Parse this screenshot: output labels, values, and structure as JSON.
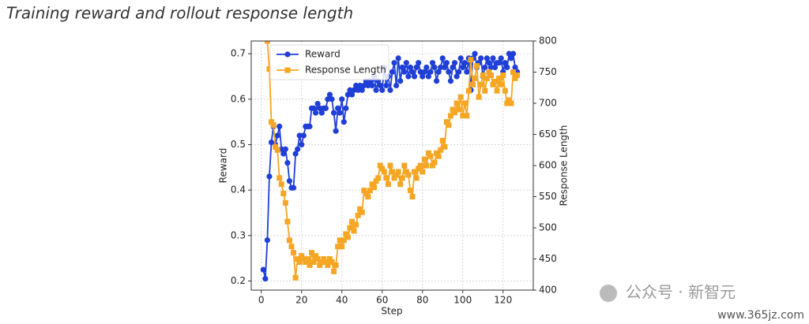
{
  "chart_data": {
    "type": "line",
    "title": "Training reward and rollout response length",
    "x_label": "Step",
    "y_label": "Reward",
    "y2_label": "Response Length",
    "x": [
      1,
      2,
      3,
      4,
      5,
      6,
      7,
      8,
      9,
      10,
      11,
      12,
      13,
      14,
      15,
      16,
      17,
      18,
      19,
      20,
      21,
      22,
      23,
      24,
      25,
      26,
      27,
      28,
      29,
      30,
      31,
      32,
      33,
      34,
      35,
      36,
      37,
      38,
      39,
      40,
      41,
      42,
      43,
      44,
      45,
      46,
      47,
      48,
      49,
      50,
      51,
      52,
      53,
      54,
      55,
      56,
      57,
      58,
      59,
      60,
      61,
      62,
      63,
      64,
      65,
      66,
      67,
      68,
      69,
      70,
      71,
      72,
      73,
      74,
      75,
      76,
      77,
      78,
      79,
      80,
      81,
      82,
      83,
      84,
      85,
      86,
      87,
      88,
      89,
      90,
      91,
      92,
      93,
      94,
      95,
      96,
      97,
      98,
      99,
      100,
      101,
      102,
      103,
      104,
      105,
      106,
      107,
      108,
      109,
      110,
      111,
      112,
      113,
      114,
      115,
      116,
      117,
      118,
      119,
      120,
      121,
      122,
      123,
      124,
      125,
      126,
      127
    ],
    "series": [
      {
        "name": "Reward",
        "color": "#1f3fd6",
        "marker": "circle",
        "values": [
          0.225,
          0.205,
          0.29,
          0.43,
          0.505,
          0.54,
          0.5,
          0.52,
          0.54,
          0.49,
          0.48,
          0.49,
          0.46,
          0.42,
          0.405,
          0.405,
          0.48,
          0.49,
          0.52,
          0.5,
          0.52,
          0.54,
          0.54,
          0.54,
          0.58,
          0.58,
          0.57,
          0.59,
          0.58,
          0.57,
          0.58,
          0.58,
          0.6,
          0.61,
          0.6,
          0.57,
          0.53,
          0.58,
          0.57,
          0.6,
          0.55,
          0.58,
          0.61,
          0.62,
          0.61,
          0.62,
          0.63,
          0.62,
          0.63,
          0.62,
          0.63,
          0.64,
          0.63,
          0.64,
          0.63,
          0.65,
          0.62,
          0.64,
          0.63,
          0.62,
          0.67,
          0.63,
          0.65,
          0.62,
          0.66,
          0.68,
          0.63,
          0.69,
          0.64,
          0.67,
          0.66,
          0.68,
          0.65,
          0.67,
          0.66,
          0.65,
          0.67,
          0.68,
          0.66,
          0.65,
          0.66,
          0.67,
          0.65,
          0.66,
          0.68,
          0.67,
          0.64,
          0.66,
          0.67,
          0.69,
          0.67,
          0.68,
          0.66,
          0.64,
          0.67,
          0.68,
          0.65,
          0.66,
          0.69,
          0.67,
          0.68,
          0.66,
          0.69,
          0.62,
          0.69,
          0.7,
          0.67,
          0.68,
          0.69,
          0.65,
          0.67,
          0.69,
          0.68,
          0.67,
          0.69,
          0.67,
          0.68,
          0.68,
          0.69,
          0.66,
          0.68,
          0.67,
          0.7,
          0.69,
          0.7,
          0.67,
          0.66
        ]
      },
      {
        "name": "Response Length",
        "color": "#f5a623",
        "marker": "square",
        "axis": "y2",
        "values": [
          null,
          null,
          800,
          755,
          670,
          665,
          630,
          625,
          580,
          570,
          555,
          540,
          510,
          480,
          470,
          460,
          420,
          450,
          445,
          455,
          450,
          445,
          450,
          440,
          460,
          445,
          455,
          450,
          440,
          445,
          450,
          445,
          440,
          450,
          445,
          430,
          440,
          470,
          480,
          470,
          480,
          490,
          485,
          500,
          510,
          495,
          505,
          520,
          530,
          525,
          560,
          555,
          550,
          560,
          570,
          565,
          575,
          580,
          600,
          595,
          590,
          580,
          570,
          600,
          590,
          580,
          585,
          590,
          570,
          580,
          600,
          590,
          585,
          560,
          550,
          590,
          580,
          595,
          600,
          590,
          610,
          600,
          620,
          615,
          600,
          605,
          620,
          615,
          625,
          640,
          630,
          670,
          665,
          680,
          690,
          685,
          700,
          690,
          710,
          680,
          700,
          680,
          720,
          770,
          730,
          740,
          760,
          710,
          730,
          745,
          720,
          740,
          750,
          745,
          730,
          735,
          720,
          740,
          730,
          745,
          720,
          700,
          705,
          700,
          750,
          740,
          745
        ]
      }
    ],
    "xlim": [
      -5,
      135
    ],
    "xticks": [
      0,
      20,
      40,
      60,
      80,
      100,
      120
    ],
    "ylim": [
      0.18,
      0.728
    ],
    "yticks": [
      0.2,
      0.3,
      0.4,
      0.5,
      0.6,
      0.7
    ],
    "y2lim": [
      400,
      800
    ],
    "y2ticks": [
      400,
      450,
      500,
      550,
      600,
      650,
      700,
      750,
      800
    ],
    "grid": true,
    "legend": "upper left",
    "watermark": "公众号 · 新智元",
    "site": "www.365jz.com"
  }
}
